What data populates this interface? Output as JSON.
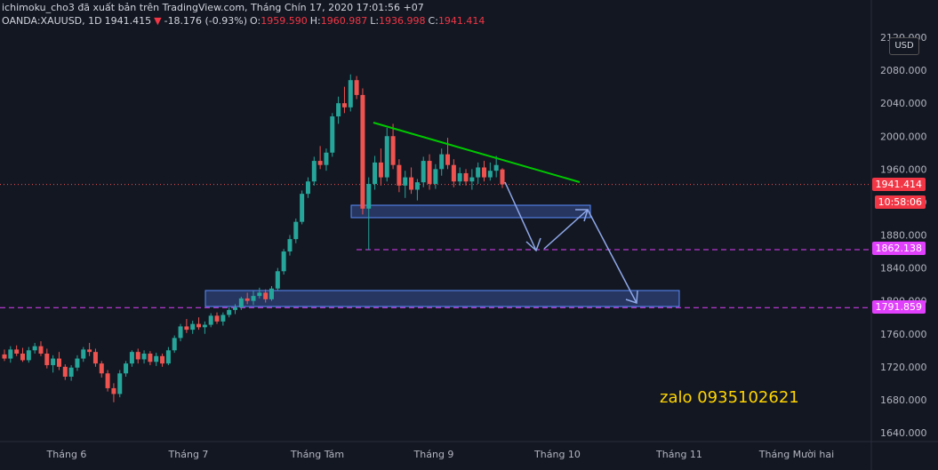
{
  "header": {
    "line1": "ichimoku_cho3 đã xuất bản trên TradingView.com, Tháng Chín 17, 2020 17:01:56 +07",
    "symbol": "OANDA:XAUUSD, 1D",
    "last": "1941.415",
    "change": "-18.176 (-0.93%)",
    "o_label": "O:",
    "o": "1959.590",
    "h_label": "H:",
    "h": "1960.987",
    "l_label": "L:",
    "l": "1936.998",
    "c_label": "C:",
    "c": "1941.414"
  },
  "currency_button": "USD",
  "price_labels": {
    "last": "1941.414",
    "countdown": "10:58:06",
    "level1": "1862.138",
    "level2": "1791.859"
  },
  "annotation": "zalo 0935102621",
  "colors": {
    "background": "#131722",
    "up": "#26a69a",
    "down": "#ef5350",
    "trendline": "#00c800",
    "level": "#e040fb",
    "zone": "#4a6fd6",
    "arrow": "#8fa8e8",
    "price_tag": "#f23645"
  },
  "chart_data": {
    "type": "candlestick",
    "title": "",
    "ylabel": "",
    "xlabel": "",
    "ylim": [
      1620,
      2130
    ],
    "y_ticks": [
      "2120.000",
      "2080.000",
      "2040.000",
      "2000.000",
      "1960.000",
      "1920.000",
      "1880.000",
      "1840.000",
      "1800.000",
      "1760.000",
      "1720.000",
      "1680.000",
      "1640.000"
    ],
    "x_ticks": [
      "Tháng 6",
      "Tháng 7",
      "Tháng Tám",
      "Tháng 9",
      "Tháng 10",
      "Tháng 11",
      "Tháng Mười hai"
    ],
    "horizontal_levels": [
      1862.138,
      1791.859
    ],
    "last_price": 1941.414,
    "candles": [
      [
        1735,
        1741,
        1727,
        1730
      ],
      [
        1730,
        1745,
        1725,
        1741
      ],
      [
        1741,
        1746,
        1733,
        1736
      ],
      [
        1736,
        1743,
        1726,
        1728
      ],
      [
        1728,
        1744,
        1725,
        1740
      ],
      [
        1740,
        1749,
        1736,
        1745
      ],
      [
        1745,
        1751,
        1733,
        1736
      ],
      [
        1736,
        1742,
        1718,
        1722
      ],
      [
        1722,
        1734,
        1713,
        1730
      ],
      [
        1730,
        1738,
        1716,
        1720
      ],
      [
        1720,
        1723,
        1704,
        1708
      ],
      [
        1708,
        1722,
        1703,
        1719
      ],
      [
        1719,
        1734,
        1715,
        1730
      ],
      [
        1730,
        1744,
        1726,
        1741
      ],
      [
        1741,
        1749,
        1733,
        1738
      ],
      [
        1738,
        1742,
        1720,
        1724
      ],
      [
        1724,
        1727,
        1707,
        1712
      ],
      [
        1712,
        1716,
        1690,
        1694
      ],
      [
        1694,
        1700,
        1677,
        1687
      ],
      [
        1687,
        1716,
        1683,
        1712
      ],
      [
        1712,
        1727,
        1708,
        1724
      ],
      [
        1724,
        1740,
        1720,
        1738
      ],
      [
        1738,
        1742,
        1724,
        1729
      ],
      [
        1729,
        1740,
        1724,
        1736
      ],
      [
        1736,
        1739,
        1722,
        1726
      ],
      [
        1726,
        1737,
        1721,
        1733
      ],
      [
        1733,
        1736,
        1720,
        1724
      ],
      [
        1724,
        1744,
        1722,
        1740
      ],
      [
        1740,
        1758,
        1737,
        1755
      ],
      [
        1755,
        1772,
        1751,
        1769
      ],
      [
        1769,
        1778,
        1761,
        1765
      ],
      [
        1765,
        1776,
        1760,
        1772
      ],
      [
        1772,
        1780,
        1765,
        1768
      ],
      [
        1768,
        1775,
        1760,
        1771
      ],
      [
        1771,
        1785,
        1768,
        1782
      ],
      [
        1782,
        1786,
        1772,
        1775
      ],
      [
        1775,
        1786,
        1770,
        1783
      ],
      [
        1783,
        1792,
        1780,
        1789
      ],
      [
        1789,
        1796,
        1784,
        1792
      ],
      [
        1792,
        1805,
        1789,
        1803
      ],
      [
        1803,
        1810,
        1796,
        1800
      ],
      [
        1800,
        1812,
        1795,
        1806
      ],
      [
        1806,
        1816,
        1803,
        1810
      ],
      [
        1810,
        1814,
        1798,
        1802
      ],
      [
        1802,
        1818,
        1800,
        1815
      ],
      [
        1815,
        1840,
        1812,
        1836
      ],
      [
        1836,
        1863,
        1832,
        1860
      ],
      [
        1860,
        1880,
        1855,
        1875
      ],
      [
        1875,
        1900,
        1870,
        1896
      ],
      [
        1896,
        1934,
        1893,
        1930
      ],
      [
        1930,
        1950,
        1925,
        1945
      ],
      [
        1945,
        1975,
        1940,
        1970
      ],
      [
        1970,
        1988,
        1960,
        1965
      ],
      [
        1965,
        1985,
        1958,
        1980
      ],
      [
        1980,
        2028,
        1975,
        2024
      ],
      [
        2024,
        2048,
        2015,
        2040
      ],
      [
        2040,
        2060,
        2028,
        2035
      ],
      [
        2035,
        2075,
        2030,
        2068
      ],
      [
        2068,
        2073,
        2045,
        2050
      ],
      [
        2050,
        2058,
        1905,
        1912
      ],
      [
        1912,
        1950,
        1862,
        1942
      ],
      [
        1942,
        1976,
        1935,
        1968
      ],
      [
        1968,
        1985,
        1940,
        1950
      ],
      [
        1950,
        2010,
        1945,
        2000
      ],
      [
        2000,
        2015,
        1960,
        1965
      ],
      [
        1965,
        1972,
        1932,
        1940
      ],
      [
        1940,
        1958,
        1925,
        1950
      ],
      [
        1950,
        1962,
        1930,
        1935
      ],
      [
        1935,
        1948,
        1922,
        1944
      ],
      [
        1944,
        1975,
        1938,
        1970
      ],
      [
        1970,
        1978,
        1935,
        1942
      ],
      [
        1942,
        1966,
        1936,
        1960
      ],
      [
        1960,
        1985,
        1952,
        1978
      ],
      [
        1978,
        1998,
        1960,
        1965
      ],
      [
        1965,
        1972,
        1938,
        1945
      ],
      [
        1945,
        1962,
        1940,
        1955
      ],
      [
        1955,
        1960,
        1940,
        1945
      ],
      [
        1945,
        1960,
        1935,
        1950
      ],
      [
        1950,
        1968,
        1942,
        1962
      ],
      [
        1962,
        1970,
        1945,
        1950
      ],
      [
        1950,
        1968,
        1946,
        1958
      ],
      [
        1958,
        1976,
        1950,
        1965
      ],
      [
        1959.59,
        1960.987,
        1936.998,
        1941.414
      ]
    ]
  }
}
